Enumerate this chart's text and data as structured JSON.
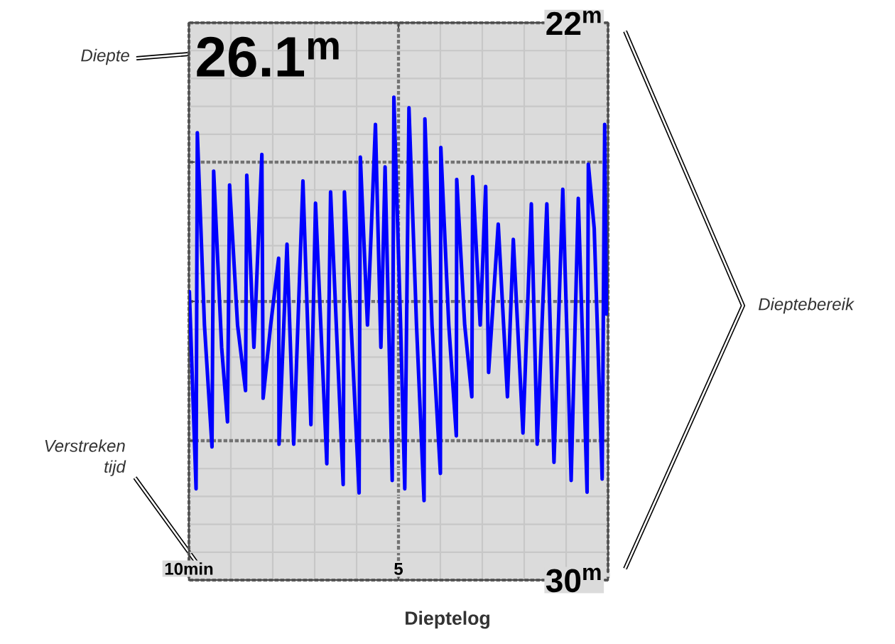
{
  "chart_data": {
    "type": "line",
    "title": "Dieptelog",
    "annotations": [
      "26.1$^{m}$",
      "Diepte",
      "Verstreken tijd",
      "Dieptebereik"
    ],
    "xlim": [
      10,
      0
    ],
    "ylim": [
      30,
      22
    ],
    "xticks": [
      {
        "value": 10,
        "label": "10min"
      },
      5,
      {
        "value": 0,
        "label": null
      }
    ],
    "yticks": [
      {
        "value": 22,
        "label": "22$^{m}$"
      },
      {
        "value": 24,
        "label": null
      },
      {
        "value": 26,
        "label": null
      },
      {
        "value": 28,
        "label": null
      },
      {
        "value": 30,
        "label": "30$^{m}$"
      }
    ],
    "grid": true,
    "marker": "none",
    "line_style": "solid",
    "series": [
      {
        "color": "#0000ff",
        "x": [
          9.99,
          9.83,
          9.8,
          9.63,
          9.45,
          9.41,
          9.22,
          9.08,
          9.03,
          8.84,
          8.65,
          8.62,
          8.45,
          8.26,
          8.23,
          8.05,
          7.86,
          7.85,
          7.66,
          7.5,
          7.28,
          7.09,
          6.98,
          6.71,
          6.62,
          6.32,
          6.29,
          6.13,
          5.94,
          5.91,
          5.74,
          5.55,
          5.42,
          5.32,
          5.15,
          5.11,
          4.95,
          4.85,
          4.75,
          4.57,
          4.39,
          4.37,
          4.2,
          4.0,
          3.99,
          3.8,
          3.62,
          3.61,
          3.42,
          3.25,
          3.23,
          3.05,
          2.92,
          2.85,
          2.62,
          2.4,
          2.26,
          2.03,
          1.83,
          1.69,
          1.46,
          1.29,
          1.08,
          0.88,
          0.71,
          0.5,
          0.47,
          0.33,
          0.14,
          0.08,
          0.04
        ],
        "values": [
          25.86,
          28.69,
          23.58,
          26.34,
          28.09,
          24.13,
          26.66,
          27.73,
          24.33,
          26.34,
          27.28,
          24.19,
          26.66,
          23.89,
          27.39,
          26.34,
          25.38,
          28.05,
          25.18,
          28.05,
          24.27,
          27.77,
          24.59,
          28.33,
          24.43,
          28.63,
          24.43,
          26.34,
          28.75,
          23.93,
          26.34,
          23.46,
          26.66,
          24.07,
          28.57,
          23.07,
          26.34,
          28.69,
          23.22,
          26.34,
          28.86,
          23.38,
          26.34,
          28.47,
          23.79,
          26.34,
          27.93,
          24.25,
          26.34,
          27.37,
          24.21,
          26.34,
          24.35,
          27.02,
          24.89,
          27.37,
          25.11,
          27.89,
          24.6,
          28.05,
          24.6,
          28.31,
          24.39,
          28.57,
          24.52,
          28.74,
          24.03,
          24.95,
          28.55,
          23.46,
          26.18
        ]
      }
    ]
  }
}
